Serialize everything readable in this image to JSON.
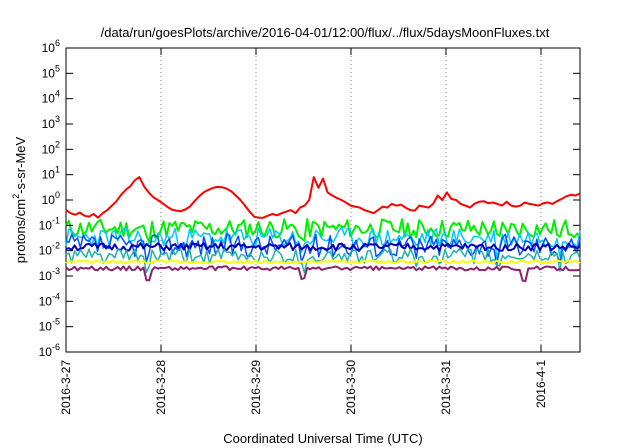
{
  "chart_data": {
    "type": "line",
    "title": "/data/run/goesPlots/archive/2016-04-01/12:00/flux/../flux/5daysMoonFluxes.txt",
    "xlabel": "Coordinated Universal Time (UTC)",
    "ylabel": {
      "pre": "protons/cm",
      "sup": "2",
      "post": "-s-sr-MeV"
    },
    "y_scale": "log",
    "ylim": [
      1e-06,
      1000000.0
    ],
    "xlim": [
      "2016-03-27",
      "2016-04-01T12:00"
    ],
    "x_ticks": [
      "2016-3-27",
      "2016-3-28",
      "2016-3-29",
      "2016-3-30",
      "2016-3-31",
      "2016-4-1"
    ],
    "y_ticks": [
      {
        "value": 1e-06,
        "base": "10",
        "exp": "-6"
      },
      {
        "value": 1e-05,
        "base": "10",
        "exp": "-5"
      },
      {
        "value": 0.0001,
        "base": "10",
        "exp": "-4"
      },
      {
        "value": 0.001,
        "base": "10",
        "exp": "-3"
      },
      {
        "value": 0.01,
        "base": "10",
        "exp": "-2"
      },
      {
        "value": 0.1,
        "base": "10",
        "exp": "-1"
      },
      {
        "value": 1.0,
        "base": "10",
        "exp": "0"
      },
      {
        "value": 10.0,
        "base": "10",
        "exp": "1"
      },
      {
        "value": 100.0,
        "base": "10",
        "exp": "2"
      },
      {
        "value": 1000.0,
        "base": "10",
        "exp": "3"
      },
      {
        "value": 10000.0,
        "base": "10",
        "exp": "4"
      },
      {
        "value": 100000.0,
        "base": "10",
        "exp": "5"
      },
      {
        "value": 1000000.0,
        "base": "10",
        "exp": "6"
      }
    ],
    "grid": {
      "vertical": true,
      "horizontal": false,
      "style": "dotted"
    },
    "legend": "none",
    "series": [
      {
        "color": "#ff0000",
        "width": 2,
        "values": [
          0.4,
          0.3,
          0.26,
          0.32,
          0.24,
          0.22,
          0.28,
          0.2,
          0.3,
          0.4,
          0.6,
          0.9,
          1.6,
          2.5,
          3.5,
          6,
          8,
          3.5,
          2,
          1.3,
          1,
          0.75,
          0.55,
          0.42,
          0.38,
          0.36,
          0.42,
          0.55,
          0.9,
          1.4,
          2,
          2.5,
          3,
          3.3,
          3.2,
          2.8,
          2.2,
          1.5,
          1,
          0.6,
          0.35,
          0.22,
          0.2,
          0.2,
          0.24,
          0.28,
          0.25,
          0.3,
          0.35,
          0.4,
          0.3,
          0.5,
          0.6,
          1,
          8,
          3,
          7,
          2,
          1.5,
          1.2,
          1,
          0.8,
          0.6,
          0.55,
          0.5,
          0.4,
          0.35,
          0.3,
          0.4,
          0.55,
          0.5,
          0.7,
          0.6,
          0.65,
          0.5,
          0.4,
          0.38,
          0.6,
          0.55,
          0.5,
          0.7,
          1.5,
          1,
          2,
          1.1,
          1,
          0.7,
          0.6,
          0.5,
          0.7,
          0.85,
          0.9,
          0.75,
          0.8,
          0.7,
          0.6,
          0.85,
          0.6,
          0.55,
          0.6,
          0.8,
          0.7,
          0.65,
          0.6,
          0.75,
          0.8,
          0.7,
          0.9,
          1.1,
          1.4,
          1.6,
          1.5,
          1.8
        ]
      },
      {
        "color": "#00ee00",
        "width": 2,
        "base": 0.075,
        "amp": 0.38,
        "dips": [
          0.16,
          0.46,
          0.68,
          0.84,
          0.96
        ],
        "seed": 11
      },
      {
        "color": "#00c8ff",
        "width": 1.5,
        "base": 0.032,
        "amp": 0.4,
        "dips": [
          0.16,
          0.46,
          0.68,
          0.84,
          0.96
        ],
        "seed": 23
      },
      {
        "color": "#0050ff",
        "width": 1.5,
        "base": 0.016,
        "amp": 0.45,
        "dips": [
          0.16,
          0.46,
          0.68,
          0.84,
          0.96
        ],
        "seed": 37
      },
      {
        "color": "#0000b0",
        "width": 2,
        "base": 0.014,
        "amp": 0.15,
        "dips": [],
        "seed": 51
      },
      {
        "color": "#20b2aa",
        "width": 1.5,
        "base": 0.006,
        "amp": 0.3,
        "dips": [
          0.16,
          0.46,
          0.68,
          0.84,
          0.96
        ],
        "seed": 61
      },
      {
        "color": "#ffff00",
        "width": 2,
        "base": 0.0036,
        "amp": 0.06,
        "dips": [],
        "seed": 73
      },
      {
        "color": "#8b2268",
        "width": 2,
        "base": 0.002,
        "amp": 0.08,
        "dips": [
          0.16,
          0.46,
          0.89
        ],
        "seed": 89
      }
    ]
  }
}
